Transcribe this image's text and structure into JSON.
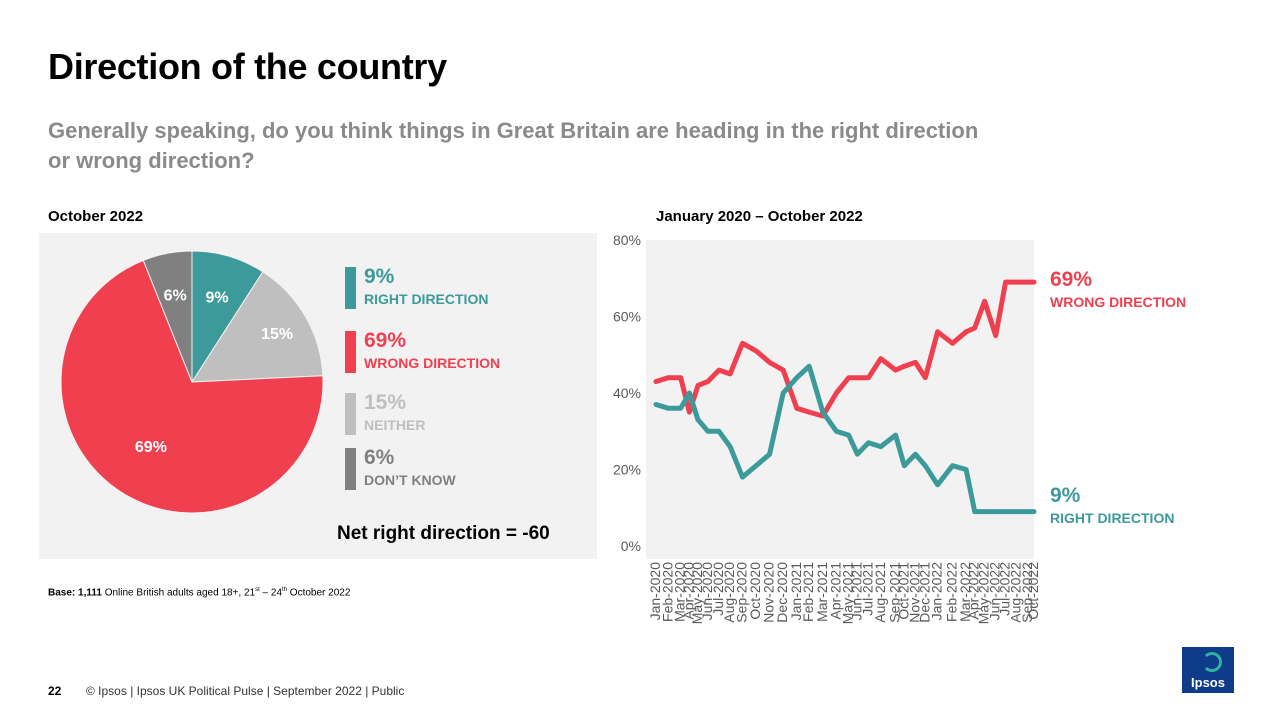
{
  "title": "Direction of the country",
  "subtitle": "Generally speaking, do you think things in Great Britain are heading in the right direction or wrong direction?",
  "pie_section_label": "October 2022",
  "line_section_label": "January 2020 – October 2022",
  "net_text": "Net right direction = -60",
  "base": {
    "bold": "Base: 1,111",
    "text1": " Online British adults aged 18+, 21",
    "sup1": "st",
    "text2": " – 24",
    "sup2": "th",
    "text3": " October 2022"
  },
  "colors": {
    "right": "#3d9a9b",
    "wrong": "#f04050",
    "neither": "#bfbfbf",
    "dont_know": "#808080",
    "panel": "#f2f2f2"
  },
  "legend": [
    {
      "value": "9%",
      "label": "RIGHT DIRECTION",
      "color": "#3d9a9b"
    },
    {
      "value": "69%",
      "label": "WRONG DIRECTION",
      "color": "#f04050"
    },
    {
      "value": "15%",
      "label": "NEITHER",
      "color": "#bfbfbf"
    },
    {
      "value": "6%",
      "label": "DON’T KNOW",
      "color": "#808080"
    }
  ],
  "line_end_labels": {
    "wrong_value": "69%",
    "wrong_label": "WRONG DIRECTION",
    "right_value": "9%",
    "right_label": "RIGHT DIRECTION"
  },
  "footer": {
    "page": "22",
    "text": "© Ipsos | Ipsos UK Political Pulse | September 2022 | Public"
  },
  "logo_text": "Ipsos",
  "chart_data": [
    {
      "type": "pie",
      "slices": [
        {
          "name": "Right direction",
          "value": 9,
          "label": "9%",
          "color": "#3d9a9b"
        },
        {
          "name": "Neither",
          "value": 15,
          "label": "15%",
          "color": "#bfbfbf"
        },
        {
          "name": "Wrong direction",
          "value": 69,
          "label": "69%",
          "color": "#f04050"
        },
        {
          "name": "Don't know",
          "value": 6,
          "label": "6%",
          "color": "#808080"
        }
      ]
    },
    {
      "type": "line",
      "x": [
        "Jan-2020",
        "Feb-2020",
        "Mar-2020",
        "Apr-2020",
        "May-2020",
        "Jun-2020",
        "Jul-2020",
        "Aug-2020",
        "Sep-2020",
        "Oct-2020",
        "Nov-2020",
        "Dec-2020",
        "Jan-2021",
        "Feb-2021",
        "Mar-2021",
        "Apr-2021",
        "May-2021",
        "Jun-2021",
        "Jul-2021",
        "Aug-2021",
        "Sep-2021",
        "Oct-2021",
        "Nov-2021",
        "Dec-2021",
        "Jan-2022",
        "Feb-2022",
        "Mar-2022",
        "Apr-2022",
        "May-2022",
        "Jun-2022",
        "Jul-2022",
        "Aug-2022",
        "Sep-2022",
        "Oct-2022"
      ],
      "x_positions": [
        0,
        1,
        2,
        2.7,
        3.4,
        4.2,
        5.1,
        6,
        7,
        8.1,
        9.2,
        10.3,
        11.4,
        12.4,
        13.5,
        14.6,
        15.6,
        16.3,
        17.2,
        18.2,
        19.4,
        20.1,
        21,
        21.8,
        22.8,
        24,
        25.1,
        25.8,
        26.6,
        27.5,
        28.3,
        29.2,
        30.1,
        30.6
      ],
      "ylim": [
        0,
        80
      ],
      "yticks": [
        "0%",
        "20%",
        "40%",
        "60%",
        "80%"
      ],
      "grid": false,
      "series": [
        {
          "name": "WRONG DIRECTION",
          "color": "#f04050",
          "values": [
            43,
            44,
            44,
            35,
            42,
            43,
            46,
            45,
            53,
            51,
            48,
            46,
            36,
            35,
            34,
            40,
            44,
            44,
            44,
            49,
            46,
            47,
            48,
            44,
            56,
            53,
            56,
            57,
            64,
            55,
            69,
            69,
            69,
            69
          ]
        },
        {
          "name": "RIGHT DIRECTION",
          "color": "#3d9a9b",
          "values": [
            37,
            36,
            36,
            40,
            33,
            30,
            30,
            26,
            18,
            21,
            24,
            40,
            44,
            47,
            35,
            30,
            29,
            24,
            27,
            26,
            29,
            21,
            24,
            21,
            16,
            21,
            20,
            9,
            9,
            9,
            9,
            9,
            9,
            9
          ]
        }
      ]
    }
  ]
}
